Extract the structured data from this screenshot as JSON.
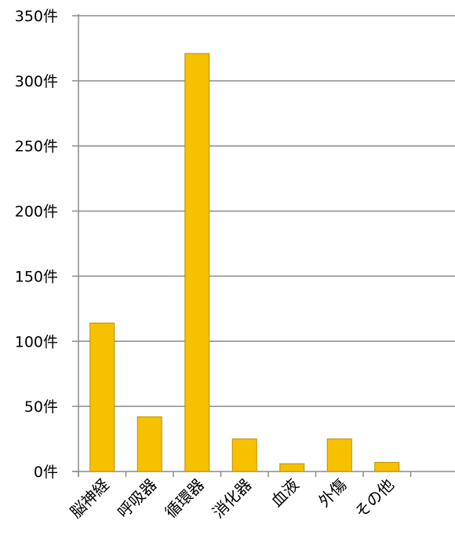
{
  "chart_data": {
    "type": "bar",
    "title": "",
    "xlabel": "",
    "ylabel": "",
    "categories": [
      "脳神経",
      "呼吸器",
      "循環器",
      "消化器",
      "血液",
      "外傷",
      "その他"
    ],
    "values": [
      114,
      42,
      321,
      25,
      6,
      25,
      7
    ],
    "ylim": [
      0,
      350
    ],
    "yticks": [
      0,
      50,
      100,
      150,
      200,
      250,
      300,
      350
    ],
    "ytick_labels": [
      "0件",
      "50件",
      "100件",
      "150件",
      "200件",
      "250件",
      "300件",
      "350件"
    ],
    "grid": true,
    "legend": "none",
    "colors": {
      "bar_fill": "#F5C100",
      "bar_stroke": "#B89000",
      "grid": "#8C8C8C",
      "axis": "#8C8C8C"
    }
  }
}
